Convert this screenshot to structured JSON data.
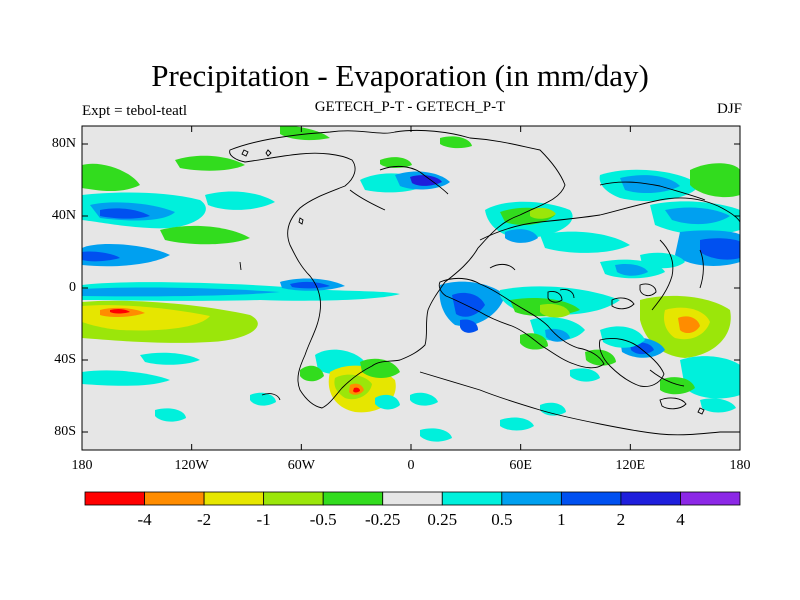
{
  "header": {
    "title": "Precipitation - Evaporation (in mm/day)",
    "left": "Expt = tebol-teatl",
    "center": "GETECH_P-T - GETECH_P-T",
    "right": "DJF"
  },
  "axes": {
    "lat_ticks": [
      {
        "lat": 80,
        "label": "80N"
      },
      {
        "lat": 40,
        "label": "40N"
      },
      {
        "lat": 0,
        "label": "0"
      },
      {
        "lat": -40,
        "label": "40S"
      },
      {
        "lat": -80,
        "label": "80S"
      }
    ],
    "lon_ticks": [
      {
        "lon": -180,
        "label": "180"
      },
      {
        "lon": -120,
        "label": "120W"
      },
      {
        "lon": -60,
        "label": "60W"
      },
      {
        "lon": 0,
        "label": "0"
      },
      {
        "lon": 60,
        "label": "60E"
      },
      {
        "lon": 120,
        "label": "120E"
      },
      {
        "lon": 180,
        "label": "180"
      }
    ],
    "lon_range": [
      -180,
      180
    ],
    "lat_range": [
      -90,
      90
    ]
  },
  "colorbar": {
    "colors": [
      "#ff0000",
      "#ff8c00",
      "#e6e600",
      "#9be60a",
      "#32dc1e",
      "#e6e6e6",
      "#00f0dc",
      "#00a0f0",
      "#0050f0",
      "#1e1edc",
      "#8c28e6"
    ],
    "labels": [
      "-4",
      "-2",
      "-1",
      "-0.5",
      "-0.25",
      "0.25",
      "0.5",
      "1",
      "2",
      "4"
    ]
  },
  "legend_key": {
    "positive": "blue-purple",
    "negative": "green-yellow-red",
    "neutral": "light grey"
  }
}
